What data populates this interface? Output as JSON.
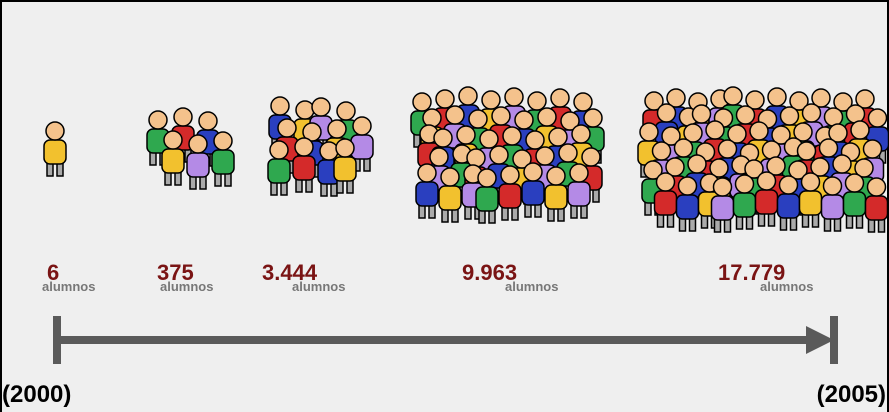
{
  "groups": [
    {
      "count": "6",
      "unit": "alumnos"
    },
    {
      "count": "375",
      "unit": "alumnos"
    },
    {
      "count": "3.444",
      "unit": "alumnos"
    },
    {
      "count": "9.963",
      "unit": "alumnos"
    },
    {
      "count": "17.779",
      "unit": "alumnos"
    }
  ],
  "timeline": {
    "start": "(2000)",
    "end": "(2005)"
  }
}
